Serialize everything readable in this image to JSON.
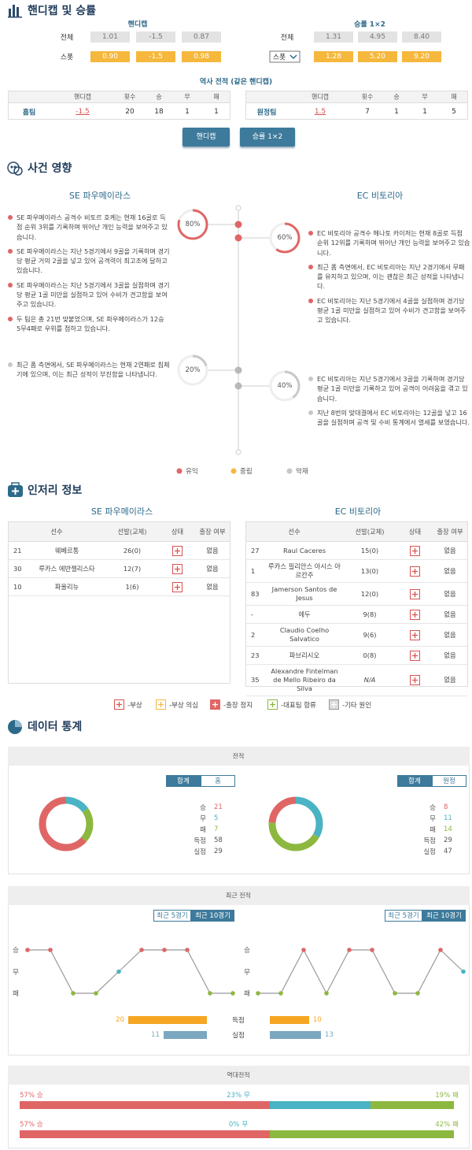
{
  "handicap": {
    "title": "핸디캡 및 승률",
    "handicap_block": {
      "header": "핸디캡",
      "rows": [
        {
          "label": "전체",
          "values": [
            "1.01",
            "-1.5",
            "0.87"
          ]
        },
        {
          "label": "스폿",
          "values": [
            "0.90",
            "-1.5",
            "0.98"
          ]
        }
      ]
    },
    "odds_block": {
      "header": "승률 1×2",
      "rows": [
        {
          "label": "전체",
          "values": [
            "1.31",
            "4.95",
            "8.40"
          ]
        },
        {
          "label": "스폿",
          "values": [
            "1.28",
            "5.20",
            "9.20"
          ]
        }
      ]
    },
    "history_title": "역사 전적 (같은 핸디캡)",
    "history_headers": [
      "핸디캡",
      "횟수",
      "승",
      "무",
      "패"
    ],
    "history_rows": [
      [
        "홈팀",
        "-1.5",
        "20",
        "18",
        "1",
        "1"
      ],
      [
        "원정팀",
        "1.5",
        "7",
        "1",
        "1",
        "5"
      ]
    ],
    "buttons": [
      "핸디캡",
      "승률 1×2"
    ]
  },
  "impact": {
    "title": "사건 영향",
    "teams": [
      "SE 파우메이라스",
      "EC 비토리아"
    ],
    "home_positive": {
      "gauge": {
        "value": 80,
        "value_label": "80%"
      },
      "items": [
        "SE 파우메이라스 공격수 비토르 호케는 현재 16골로 득점 순위 3위를 기록하며 뛰어난 개인 능력을 보여주고 있습니다.",
        "SE 파우메이라스는 지난 5경기에서 9골을 기록하며 경기당 평균 거의 2골을 넣고 있어 공격력이 최고조에 달하고 있습니다.",
        "SE 파우메이라스는 지난 5경기에서 3골을 실점하며 경기당 평균 1골 미만을 실점하고 있어 수비가 견고함을 보여주고 있습니다.",
        "두 팀은 총 21번 맞붙었으며, SE 파우메이라스가 12승 5무4패로 우위를 점하고 있습니다."
      ]
    },
    "away_positive": {
      "gauge": {
        "value": 60,
        "value_label": "60%"
      },
      "items": [
        "EC 비토리아 공격수 헤나토 카이저는 현재 8골로 득점 순위 12위를 기록하며 뛰어난 개인 능력을 보여주고 있습니다.",
        "최근 폼 측면에서, EC 비토리아는 지난 2경기에서 무패를 유지하고 있으며, 이는 괜찮은 최근 성적을 나타냅니다.",
        "EC 비토리아는 지난 5경기에서 4골을 실점하며 경기당 평균 1골 미만을 실점하고 있어 수비가 견고함을 보여주고 있습니다."
      ]
    },
    "home_negative": {
      "gauge": {
        "value": 20,
        "value_label": "20%"
      },
      "items": [
        "최근 폼 측면에서, SE 파우메이라스는 현재 2연패로 침체기에 있으며, 이는 최근 성적이 부진함을 나타냅니다."
      ]
    },
    "away_negative": {
      "gauge": {
        "value": 40,
        "value_label": "40%"
      },
      "items": [
        "EC 비토리아는 지난 5경기에서 3골을 기록하며 경기당 평균 1골 미만을 기록하고 있어 공격이 어려움을 겪고 있습니다.",
        "지난 8번의 맞대결에서 EC 비토리아는 12골을 넣고 16골을 실점하며 공격 및 수비 통계에서 열세를 보였습니다."
      ]
    },
    "legend": [
      {
        "label": "유익",
        "color": "#e06666"
      },
      {
        "label": "중립",
        "color": "#f5b83d"
      },
      {
        "label": "악재",
        "color": "#c8c8c8"
      }
    ]
  },
  "injury": {
    "title": "인저리 정보",
    "headers": [
      "선수",
      "선발(교체)",
      "상태",
      "출장 여부"
    ],
    "teams": [
      {
        "name": "SE 파우메이라스",
        "players": [
          {
            "no": "21",
            "name": "웨베르통",
            "apps": "26(0)",
            "available": "없음"
          },
          {
            "no": "30",
            "name": "루카스 에반젤리스타",
            "apps": "12(7)",
            "available": "없음"
          },
          {
            "no": "10",
            "name": "파울리뉴",
            "apps": "1(6)",
            "available": "없음"
          }
        ]
      },
      {
        "name": "EC 비토리아",
        "players": [
          {
            "no": "27",
            "name": "Raul Caceres",
            "apps": "15(0)",
            "available": "없음"
          },
          {
            "no": "1",
            "name": "루카스 필리안스 아시스 아르칸주",
            "apps": "13(0)",
            "available": "없음"
          },
          {
            "no": "83",
            "name": "Jamerson Santos de Jesus",
            "apps": "12(0)",
            "available": "없음"
          },
          {
            "no": "-",
            "name": "에두",
            "apps": "9(8)",
            "available": "없음"
          },
          {
            "no": "2",
            "name": "Claudio Coelho Salvatico",
            "apps": "9(6)",
            "available": "없음"
          },
          {
            "no": "23",
            "name": "파브리시오",
            "apps": "0(8)",
            "available": "없음"
          },
          {
            "no": "35",
            "name": "Alexandre Fintelman de Mello Ribeiro da Silva",
            "apps": "N/A",
            "available": "없음"
          }
        ]
      }
    ],
    "legend": [
      "-부상",
      "-부상 의심",
      "-출장 정지",
      "-대표팀 합류",
      "-기타 원인"
    ]
  },
  "stats": {
    "title": "데이터 통계",
    "record": {
      "title": "전적",
      "teams": [
        {
          "tabs": [
            "합계",
            "홈"
          ],
          "rows": [
            {
              "label": "승",
              "value": 21,
              "color": "#e06666"
            },
            {
              "label": "무",
              "value": 5,
              "color": "#4ab3c4"
            },
            {
              "label": "패",
              "value": 7,
              "color": "#8db83f"
            },
            {
              "label": "득점",
              "value": 58
            },
            {
              "label": "실점",
              "value": 29
            }
          ]
        },
        {
          "tabs": [
            "합계",
            "원정"
          ],
          "rows": [
            {
              "label": "승",
              "value": 8,
              "color": "#e06666"
            },
            {
              "label": "무",
              "value": 11,
              "color": "#4ab3c4"
            },
            {
              "label": "패",
              "value": 14,
              "color": "#8db83f"
            },
            {
              "label": "득점",
              "value": 29
            },
            {
              "label": "실점",
              "value": 47
            }
          ]
        }
      ]
    },
    "recent": {
      "title": "최근 전적",
      "ylim": [
        -1,
        1
      ],
      "yticks": [
        {
          "value": 1,
          "label": "승"
        },
        {
          "value": 0,
          "label": "무"
        },
        {
          "value": -1,
          "label": "패"
        }
      ],
      "point_colors": [
        "#e06666",
        "#4ab3c4",
        "#8db83f"
      ],
      "teams": [
        {
          "tabs": [
            "최근 5경기",
            "최근 10경기"
          ],
          "values": [
            1,
            1,
            -1,
            -1,
            0,
            1,
            1,
            1,
            -1,
            -1
          ]
        },
        {
          "tabs": [
            "최근 5경기",
            "최근 10경기"
          ],
          "values": [
            -1,
            -1,
            1,
            -1,
            1,
            1,
            -1,
            -1,
            1,
            0
          ]
        }
      ],
      "goals": {
        "categories": [
          "득점",
          "실점"
        ],
        "colors": [
          "#f5a623",
          "#7ba7c0"
        ],
        "home": [
          20,
          11
        ],
        "away": [
          10,
          13
        ]
      }
    },
    "h2h": {
      "title": "역대전적",
      "xlim": [
        0,
        100
      ],
      "rows": [
        [
          {
            "name": "승",
            "value": 57,
            "value_label": "57%",
            "color": "#e06666"
          },
          {
            "name": "무",
            "value": 23,
            "value_label": "23%",
            "color": "#4ab3c4"
          },
          {
            "name": "패",
            "value": 19,
            "value_label": "19%",
            "color": "#8db83f"
          }
        ],
        [
          {
            "name": "승",
            "value": 57,
            "value_label": "57%",
            "color": "#e06666"
          },
          {
            "name": "무",
            "value": 0,
            "value_label": "0%",
            "color": "#4ab3c4"
          },
          {
            "name": "패",
            "value": 42,
            "value_label": "42%",
            "color": "#8db83f"
          }
        ]
      ]
    }
  }
}
